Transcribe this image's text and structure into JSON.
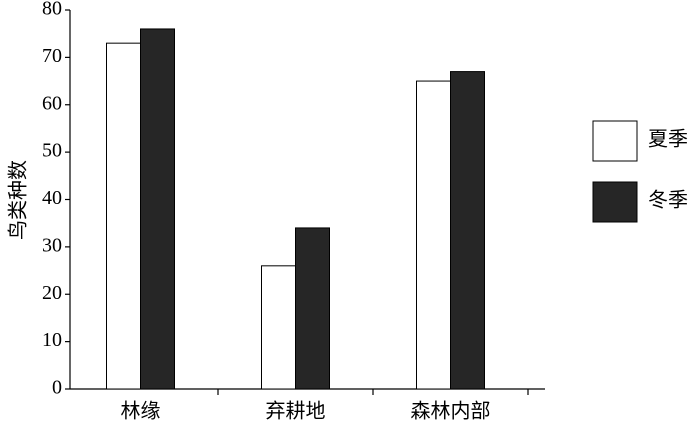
{
  "chart_data": {
    "type": "bar",
    "y_label": "鸟类种数",
    "categories": [
      "林缘",
      "弃耕地",
      "森林内部"
    ],
    "series": [
      {
        "name": "夏季",
        "color": "#ffffff",
        "values": [
          73,
          26,
          65
        ]
      },
      {
        "name": "冬季",
        "color": "#262626",
        "values": [
          76,
          34,
          67
        ]
      }
    ],
    "ylim": [
      0,
      80
    ],
    "yticks": [
      0,
      10,
      20,
      30,
      40,
      50,
      60,
      70,
      80
    ],
    "grid": false,
    "legend": "right"
  }
}
